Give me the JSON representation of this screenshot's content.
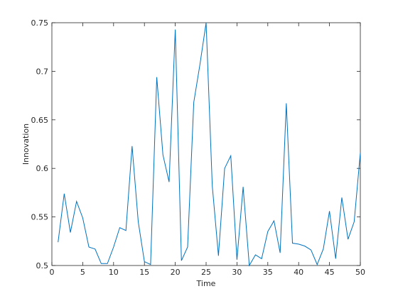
{
  "chart_data": {
    "type": "line",
    "xlabel": "Time",
    "ylabel": "Innovation",
    "x": [
      1,
      2,
      3,
      4,
      5,
      6,
      7,
      8,
      9,
      10,
      11,
      12,
      13,
      14,
      15,
      16,
      17,
      18,
      19,
      20,
      21,
      22,
      23,
      24,
      25,
      26,
      27,
      28,
      29,
      30,
      31,
      32,
      33,
      34,
      35,
      36,
      37,
      38,
      39,
      40,
      41,
      42,
      43,
      44,
      45,
      46,
      47,
      48,
      49,
      50
    ],
    "series": [
      {
        "color": "#0072bd",
        "values": [
          0.524,
          0.574,
          0.534,
          0.566,
          0.549,
          0.519,
          0.517,
          0.502,
          0.502,
          0.519,
          0.539,
          0.536,
          0.623,
          0.545,
          0.504,
          0.501,
          0.694,
          0.614,
          0.586,
          0.743,
          0.505,
          0.519,
          0.668,
          0.707,
          0.75,
          0.582,
          0.51,
          0.6,
          0.613,
          0.506,
          0.581,
          0.5,
          0.511,
          0.507,
          0.535,
          0.546,
          0.513,
          0.667,
          0.523,
          0.522,
          0.52,
          0.516,
          0.501,
          0.517,
          0.556,
          0.507,
          0.57,
          0.527,
          0.545,
          0.616
        ]
      }
    ],
    "xlim": [
      0,
      50
    ],
    "xticks": [
      0,
      5,
      10,
      15,
      20,
      25,
      30,
      35,
      40,
      45,
      50
    ],
    "ylim": [
      0.5,
      0.75
    ],
    "yticks": [
      0.5,
      0.55,
      0.6,
      0.65,
      0.7,
      0.75
    ]
  }
}
